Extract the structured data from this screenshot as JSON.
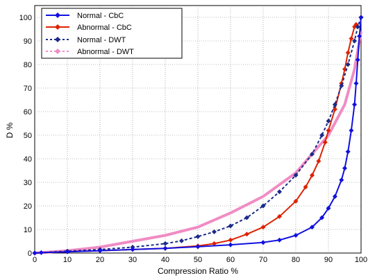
{
  "chart_data": {
    "type": "line",
    "xlabel": "Compression Ratio %",
    "ylabel": "D %",
    "xlim": [
      0,
      100
    ],
    "ylim": [
      0,
      105
    ],
    "xticks": [
      0,
      10,
      20,
      30,
      40,
      50,
      60,
      70,
      80,
      90,
      100
    ],
    "yticks": [
      0,
      10,
      20,
      30,
      40,
      50,
      60,
      70,
      80,
      90,
      100
    ],
    "grid": true,
    "legend_position": "top-left",
    "series": [
      {
        "name": "Normal  - CbC",
        "color": "#1010e0",
        "style": "solid",
        "marker": "diamond",
        "x": [
          0,
          2,
          10,
          20,
          30,
          40,
          50,
          60,
          70,
          75,
          80,
          85,
          88,
          90,
          92,
          94,
          95,
          96,
          97,
          98,
          98.5,
          99,
          99.5,
          100
        ],
        "y": [
          0,
          0.2,
          0.5,
          1,
          1.5,
          2,
          2.7,
          3.5,
          4.5,
          5.5,
          7.5,
          11,
          15,
          19,
          24,
          31,
          36,
          43,
          52,
          63,
          72,
          82,
          92,
          100
        ]
      },
      {
        "name": "Abnormal - CbC",
        "color": "#dd2200",
        "style": "solid",
        "marker": "diamond",
        "x": [
          0,
          10,
          20,
          30,
          40,
          50,
          55,
          60,
          65,
          70,
          75,
          80,
          83,
          85,
          87,
          89,
          90,
          92,
          94,
          95,
          96,
          97,
          98,
          98.5
        ],
        "y": [
          0,
          0.5,
          1,
          1.5,
          2,
          3,
          4,
          5.5,
          8,
          11,
          15.5,
          22,
          28,
          33,
          39,
          47,
          52,
          61,
          72,
          78,
          85,
          91,
          96,
          97
        ]
      },
      {
        "name": "Normal  - DWT",
        "color": "#1a2a8a",
        "style": "dashed",
        "marker": "diamond",
        "x": [
          0,
          10,
          20,
          30,
          40,
          45,
          50,
          55,
          60,
          65,
          70,
          75,
          80,
          85,
          88,
          90,
          92,
          94,
          96,
          98,
          99,
          100
        ],
        "y": [
          0,
          0.8,
          1.5,
          2.5,
          4,
          5.2,
          7,
          9,
          11.5,
          15,
          20,
          26,
          33,
          42,
          50,
          56,
          63,
          71,
          80,
          90,
          96,
          100
        ]
      },
      {
        "name": "Abnormal - DWT",
        "color": "#f08cc4",
        "style": "solid",
        "marker": "none",
        "x": [
          0,
          10,
          20,
          30,
          40,
          50,
          60,
          70,
          80,
          85,
          90,
          95,
          98,
          100
        ],
        "y": [
          0,
          1,
          2.5,
          5,
          7.5,
          11,
          17,
          24,
          34,
          42,
          50,
          63,
          78,
          94
        ]
      }
    ]
  }
}
